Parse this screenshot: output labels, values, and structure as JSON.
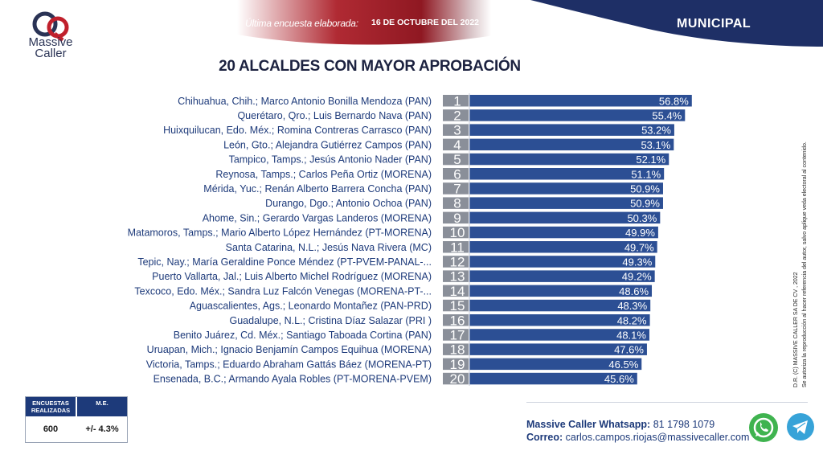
{
  "header": {
    "brand_line1": "Massive",
    "brand_line2": "Caller",
    "survey_label": "Última encuesta elaborada:",
    "survey_date": "16 DE OCTUBRE DEL 2022",
    "section": "MUNICIPAL",
    "colors": {
      "red": "#a8202c",
      "navy": "#1e2f66"
    }
  },
  "chart_data": {
    "type": "bar",
    "title": "20 ALCALDES CON MAYOR APROBACIÓN",
    "orientation": "horizontal",
    "bar_color": "#2c4f94",
    "categories": [
      "Chihuahua, Chih.; Marco Antonio Bonilla Mendoza (PAN)",
      "Querétaro, Qro.; Luis Bernardo Nava (PAN)",
      "Huixquilucan, Edo. Méx.; Romina Contreras Carrasco  (PAN)",
      "León, Gto.; Alejandra Gutiérrez Campos (PAN)",
      "Tampico, Tamps.; Jesús Antonio Nader  (PAN)",
      "Reynosa, Tamps.; Carlos Peña Ortiz (MORENA)",
      "Mérida, Yuc.; Renán Alberto Barrera Concha (PAN)",
      "Durango, Dgo.; Antonio Ochoa (PAN)",
      "Ahome, Sin.; Gerardo Vargas Landeros (MORENA)",
      "Matamoros, Tamps.; Mario Alberto López Hernández (PT-MORENA)",
      "Santa Catarina, N.L.; Jesús Nava Rivera (MC)",
      "Tepic, Nay.; María Geraldine Ponce Méndez (PT-PVEM-PANAL-...",
      "Puerto Vallarta, Jal.; Luis Alberto Michel Rodríguez (MORENA)",
      "Texcoco, Edo. Méx.; Sandra Luz Falcón Venegas (MORENA-PT-...",
      "Aguascalientes, Ags.; Leonardo Montañez (PAN-PRD)",
      "Guadalupe, N.L.; Cristina Díaz Salazar (PRI )",
      "Benito Juárez, Cd. Méx.; Santiago Taboada Cortina (PAN)",
      "Uruapan, Mich.; Ignacio Benjamín Campos Equihua (MORENA)",
      "Victoria, Tamps.; Eduardo Abraham Gattás Báez (MORENA-PT)",
      "Ensenada, B.C.; Armando Ayala Robles (PT-MORENA-PVEM)"
    ],
    "ranks": [
      "1",
      "2",
      "3",
      "4",
      "5",
      "6",
      "7",
      "8",
      "9",
      "10",
      "11",
      "12",
      "13",
      "14",
      "15",
      "16",
      "17",
      "18",
      "19",
      "20"
    ],
    "values": [
      56.8,
      55.4,
      53.2,
      53.1,
      52.1,
      51.1,
      50.9,
      50.9,
      50.3,
      49.9,
      49.7,
      49.3,
      49.2,
      48.6,
      48.3,
      48.2,
      48.1,
      47.6,
      46.5,
      45.6
    ],
    "value_labels": [
      "56.8%",
      "55.4%",
      "53.2%",
      "53.1%",
      "52.1%",
      "51.1%",
      "50.9%",
      "50.9%",
      "50.3%",
      "49.9%",
      "49.7%",
      "49.3%",
      "49.2%",
      "48.6%",
      "48.3%",
      "48.2%",
      "48.1%",
      "47.6%",
      "46.5%",
      "45.6%"
    ]
  },
  "side_note": {
    "line1": "D.R. (C) MASSIVE CALLER SA DE CV , 2022",
    "line2": "Se autoriza la reproducción al hacer referencia del autor, salvo aplique veda electoral al contenido."
  },
  "stats": {
    "col1_header": "ENCUESTAS REALIZADAS",
    "col2_header": "M.E.",
    "col1_value": "600",
    "col2_value": "+/- 4.3%"
  },
  "contact": {
    "whatsapp_label": "Massive Caller Whatsapp:",
    "whatsapp_number": "81 1798 1079",
    "email_label": "Correo:",
    "email": "carlos.campos.riojas@massivecaller.com"
  },
  "icons": [
    "whatsapp-icon",
    "telegram-icon"
  ]
}
